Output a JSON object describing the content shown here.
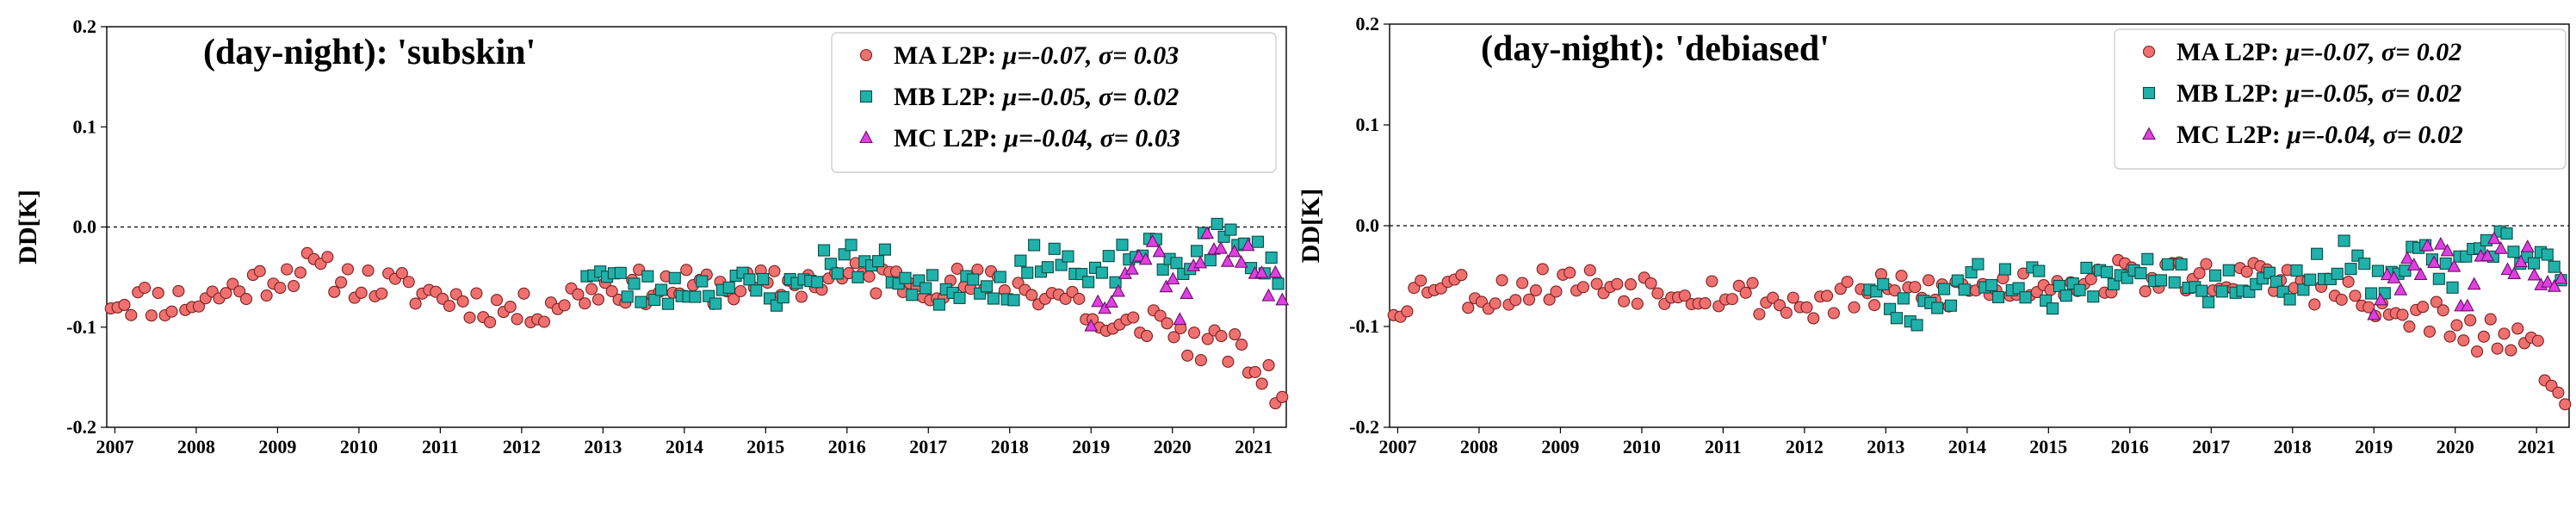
{
  "chart_data": [
    {
      "type": "scatter",
      "title": "(day-night): 'subskin'",
      "ylabel": "DD[K]",
      "xlabel": "",
      "xlim": [
        2006.9,
        2021.4
      ],
      "ylim": [
        -0.2,
        0.2
      ],
      "yticks": [
        "0.2",
        "0.1",
        "0.0",
        "-0.1",
        "-0.2"
      ],
      "xticks": [
        "2007",
        "2008",
        "2009",
        "2010",
        "2011",
        "2012",
        "2013",
        "2014",
        "2015",
        "2016",
        "2017",
        "2018",
        "2019",
        "2020",
        "2021"
      ],
      "reference_line": 0.0,
      "legend_position": "top-right",
      "legend": [
        {
          "label": "MA L2P: ",
          "stats": "μ=-0.07, σ= 0.03"
        },
        {
          "label": "MB L2P: ",
          "stats": "μ=-0.05, σ= 0.02"
        },
        {
          "label": "MC L2P: ",
          "stats": "μ=-0.04, σ= 0.03"
        }
      ],
      "series": [
        {
          "name": "MA L2P",
          "marker": "circle",
          "color": "#f07070",
          "seed": 11,
          "start": 2006.95,
          "end": 2021.35,
          "knots": [
            [
              2006.95,
              -0.072
            ],
            [
              2008.0,
              -0.075
            ],
            [
              2009.3,
              -0.04
            ],
            [
              2010.0,
              -0.055
            ],
            [
              2011.0,
              -0.068
            ],
            [
              2012.0,
              -0.085
            ],
            [
              2013.0,
              -0.06
            ],
            [
              2014.0,
              -0.06
            ],
            [
              2015.0,
              -0.06
            ],
            [
              2016.0,
              -0.05
            ],
            [
              2017.0,
              -0.055
            ],
            [
              2018.0,
              -0.06
            ],
            [
              2018.8,
              -0.07
            ],
            [
              2019.2,
              -0.11
            ],
            [
              2019.8,
              -0.09
            ],
            [
              2020.3,
              -0.12
            ],
            [
              2020.7,
              -0.12
            ],
            [
              2021.0,
              -0.14
            ],
            [
              2021.35,
              -0.17
            ]
          ]
        },
        {
          "name": "MB L2P",
          "marker": "square",
          "color": "#20b2aa",
          "seed": 23,
          "start": 2012.8,
          "end": 2021.3,
          "knots": [
            [
              2012.8,
              -0.04
            ],
            [
              2013.4,
              -0.065
            ],
            [
              2014.0,
              -0.06
            ],
            [
              2014.8,
              -0.06
            ],
            [
              2015.3,
              -0.065
            ],
            [
              2015.8,
              -0.03
            ],
            [
              2016.5,
              -0.04
            ],
            [
              2017.0,
              -0.065
            ],
            [
              2017.6,
              -0.05
            ],
            [
              2018.0,
              -0.06
            ],
            [
              2018.5,
              -0.02
            ],
            [
              2019.0,
              -0.06
            ],
            [
              2019.6,
              -0.02
            ],
            [
              2020.0,
              -0.04
            ],
            [
              2020.6,
              -0.01
            ],
            [
              2021.3,
              -0.04
            ]
          ]
        },
        {
          "name": "MC L2P",
          "marker": "triangle",
          "color": "#e040e0",
          "seed": 37,
          "start": 2019.0,
          "end": 2021.35,
          "knots": [
            [
              2019.0,
              -0.09
            ],
            [
              2019.4,
              -0.04
            ],
            [
              2019.8,
              -0.02
            ],
            [
              2020.1,
              -0.08
            ],
            [
              2020.4,
              -0.02
            ],
            [
              2020.8,
              -0.02
            ],
            [
              2021.1,
              -0.05
            ],
            [
              2021.35,
              -0.07
            ]
          ]
        }
      ]
    },
    {
      "type": "scatter",
      "title": "(day-night): 'debiased'",
      "ylabel": "DD[K]",
      "xlabel": "",
      "xlim": [
        2006.9,
        2021.4
      ],
      "ylim": [
        -0.2,
        0.2
      ],
      "yticks": [
        "0.2",
        "0.1",
        "0.0",
        "-0.1",
        "-0.2"
      ],
      "xticks": [
        "2007",
        "2008",
        "2009",
        "2010",
        "2011",
        "2012",
        "2013",
        "2014",
        "2015",
        "2016",
        "2017",
        "2018",
        "2019",
        "2020",
        "2021"
      ],
      "reference_line": 0.0,
      "legend_position": "top-right",
      "legend": [
        {
          "label": "MA L2P: ",
          "stats": "μ=-0.07, σ= 0.02"
        },
        {
          "label": "MB L2P: ",
          "stats": "μ=-0.05, σ= 0.02"
        },
        {
          "label": "MC L2P: ",
          "stats": "μ=-0.04, σ= 0.02"
        }
      ],
      "series": [
        {
          "name": "MA L2P",
          "marker": "circle",
          "color": "#f07070",
          "seed": 53,
          "start": 2006.95,
          "end": 2021.35,
          "knots": [
            [
              2006.95,
              -0.08
            ],
            [
              2007.5,
              -0.05
            ],
            [
              2008.0,
              -0.07
            ],
            [
              2009.0,
              -0.055
            ],
            [
              2010.0,
              -0.06
            ],
            [
              2011.0,
              -0.065
            ],
            [
              2012.0,
              -0.08
            ],
            [
              2013.0,
              -0.065
            ],
            [
              2014.0,
              -0.065
            ],
            [
              2015.0,
              -0.055
            ],
            [
              2016.0,
              -0.05
            ],
            [
              2017.0,
              -0.05
            ],
            [
              2018.0,
              -0.055
            ],
            [
              2018.7,
              -0.07
            ],
            [
              2019.1,
              -0.09
            ],
            [
              2019.8,
              -0.09
            ],
            [
              2020.0,
              -0.11
            ],
            [
              2020.6,
              -0.11
            ],
            [
              2021.0,
              -0.13
            ],
            [
              2021.35,
              -0.16
            ]
          ]
        },
        {
          "name": "MB L2P",
          "marker": "square",
          "color": "#20b2aa",
          "seed": 67,
          "start": 2012.8,
          "end": 2021.3,
          "knots": [
            [
              2012.8,
              -0.055
            ],
            [
              2013.3,
              -0.085
            ],
            [
              2014.0,
              -0.055
            ],
            [
              2014.8,
              -0.055
            ],
            [
              2015.2,
              -0.07
            ],
            [
              2015.8,
              -0.04
            ],
            [
              2016.5,
              -0.04
            ],
            [
              2017.0,
              -0.06
            ],
            [
              2017.5,
              -0.05
            ],
            [
              2018.0,
              -0.06
            ],
            [
              2018.6,
              -0.03
            ],
            [
              2019.0,
              -0.06
            ],
            [
              2019.6,
              -0.03
            ],
            [
              2020.0,
              -0.05
            ],
            [
              2020.5,
              -0.02
            ],
            [
              2021.3,
              -0.04
            ]
          ]
        },
        {
          "name": "MC L2P",
          "marker": "triangle",
          "color": "#e040e0",
          "seed": 79,
          "start": 2019.0,
          "end": 2021.3,
          "knots": [
            [
              2019.0,
              -0.08
            ],
            [
              2019.4,
              -0.04
            ],
            [
              2019.8,
              -0.02
            ],
            [
              2020.1,
              -0.07
            ],
            [
              2020.4,
              -0.03
            ],
            [
              2020.8,
              -0.03
            ],
            [
              2021.1,
              -0.05
            ],
            [
              2021.3,
              -0.05
            ]
          ]
        }
      ]
    }
  ]
}
